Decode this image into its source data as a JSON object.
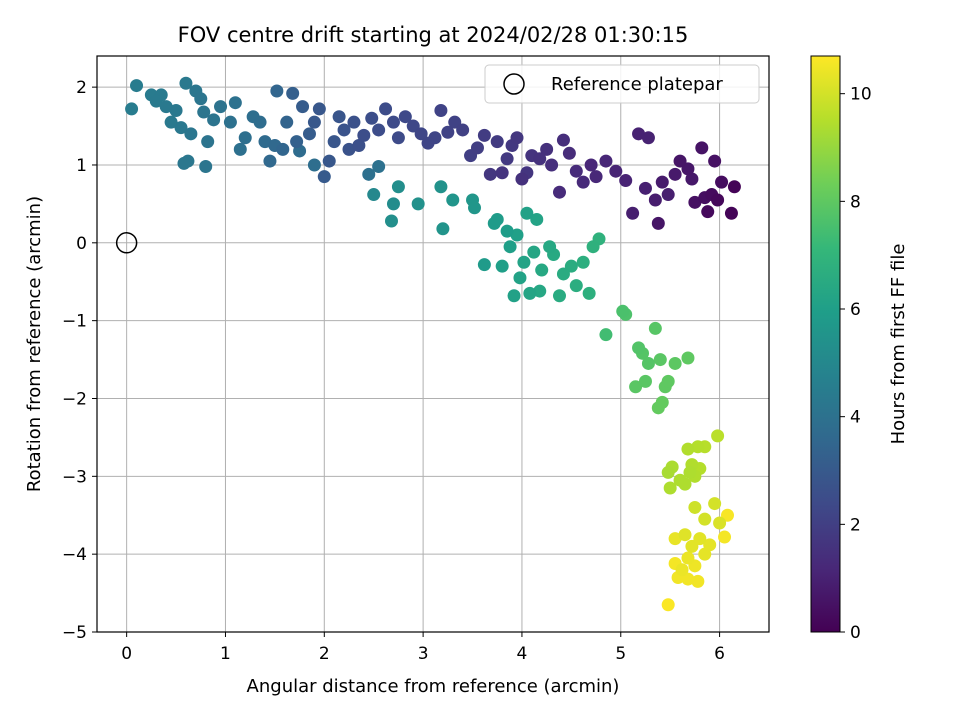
{
  "chart_data": {
    "type": "scatter",
    "title": "FOV centre drift starting at 2024/02/28 01:30:15",
    "xlabel": "Angular distance from reference (arcmin)",
    "ylabel": "Rotation from reference (arcmin)",
    "xlim": [
      -0.3,
      6.5
    ],
    "ylim": [
      -5.0,
      2.4
    ],
    "xticks": [
      0,
      1,
      2,
      3,
      4,
      5,
      6
    ],
    "yticks": [
      -5,
      -4,
      -3,
      -2,
      -1,
      0,
      1,
      2
    ],
    "xtick_labels": [
      "0",
      "1",
      "2",
      "3",
      "4",
      "5",
      "6"
    ],
    "ytick_labels": [
      "−5",
      "−4",
      "−3",
      "−2",
      "−1",
      "0",
      "1",
      "2"
    ],
    "grid": true,
    "legend": {
      "position": "top-right",
      "entries": [
        "Reference platepar"
      ]
    },
    "reference_point": {
      "x": 0,
      "y": 0
    },
    "colorbar": {
      "label": "Hours from first FF file",
      "colormap": "viridis",
      "range": [
        0,
        10.7
      ],
      "ticks": [
        0,
        2,
        4,
        6,
        8,
        10
      ],
      "tick_labels": [
        "0",
        "2",
        "4",
        "6",
        "8",
        "10"
      ]
    },
    "color_stops": [
      "#440154",
      "#482878",
      "#3e4a89",
      "#31688e",
      "#26828e",
      "#1f9e89",
      "#35b779",
      "#6ece58",
      "#b5de2b",
      "#fde725"
    ],
    "series": [
      {
        "points": [
          [
            6.15,
            0.72,
            0.05
          ],
          [
            6.12,
            0.38,
            0.1
          ],
          [
            5.98,
            0.55,
            0.2
          ],
          [
            5.92,
            0.62,
            0.3
          ],
          [
            5.88,
            0.4,
            0.25
          ],
          [
            6.02,
            0.78,
            0.35
          ],
          [
            5.85,
            0.58,
            0.4
          ],
          [
            5.75,
            0.52,
            0.45
          ],
          [
            5.95,
            1.05,
            0.5
          ],
          [
            5.82,
            1.22,
            0.55
          ],
          [
            5.6,
            1.05,
            0.6
          ],
          [
            5.68,
            0.95,
            0.65
          ],
          [
            5.72,
            0.82,
            0.7
          ],
          [
            5.55,
            0.88,
            0.75
          ],
          [
            5.42,
            0.78,
            0.8
          ],
          [
            5.38,
            0.25,
            0.6
          ],
          [
            5.35,
            0.55,
            0.85
          ],
          [
            5.48,
            0.62,
            0.9
          ],
          [
            5.25,
            0.7,
            0.95
          ],
          [
            5.18,
            1.4,
            1.0
          ],
          [
            5.28,
            1.35,
            1.0
          ],
          [
            5.12,
            0.38,
            0.9
          ],
          [
            5.05,
            0.8,
            1.05
          ],
          [
            4.95,
            0.92,
            1.1
          ],
          [
            4.85,
            1.05,
            1.15
          ],
          [
            4.75,
            0.85,
            1.2
          ],
          [
            4.7,
            1.0,
            1.15
          ],
          [
            4.62,
            0.78,
            1.25
          ],
          [
            4.55,
            0.92,
            1.3
          ],
          [
            4.48,
            1.15,
            1.35
          ],
          [
            4.42,
            1.32,
            1.4
          ],
          [
            4.38,
            0.65,
            1.3
          ],
          [
            4.3,
            1.0,
            1.45
          ],
          [
            4.25,
            1.2,
            1.5
          ],
          [
            4.18,
            1.08,
            1.55
          ],
          [
            4.1,
            1.12,
            1.6
          ],
          [
            4.05,
            0.9,
            1.65
          ],
          [
            4.0,
            0.82,
            1.5
          ],
          [
            3.95,
            1.35,
            1.7
          ],
          [
            3.9,
            1.25,
            1.75
          ],
          [
            3.85,
            1.08,
            1.8
          ],
          [
            3.8,
            0.9,
            1.6
          ],
          [
            3.75,
            1.3,
            1.85
          ],
          [
            3.68,
            0.88,
            1.7
          ],
          [
            3.62,
            1.38,
            1.9
          ],
          [
            3.55,
            1.22,
            1.95
          ],
          [
            3.48,
            1.12,
            2.0
          ],
          [
            3.4,
            1.45,
            2.05
          ],
          [
            3.32,
            1.55,
            2.1
          ],
          [
            3.25,
            1.42,
            2.1
          ],
          [
            3.18,
            1.7,
            2.15
          ],
          [
            3.12,
            1.35,
            2.2
          ],
          [
            3.05,
            1.28,
            2.2
          ],
          [
            2.98,
            1.4,
            2.25
          ],
          [
            2.9,
            1.5,
            2.3
          ],
          [
            2.82,
            1.62,
            2.35
          ],
          [
            2.75,
            1.35,
            2.4
          ],
          [
            2.7,
            1.55,
            2.4
          ],
          [
            2.62,
            1.72,
            2.45
          ],
          [
            2.55,
            1.45,
            2.5
          ],
          [
            2.48,
            1.6,
            2.55
          ],
          [
            2.4,
            1.38,
            2.55
          ],
          [
            2.35,
            1.25,
            2.6
          ],
          [
            2.3,
            1.55,
            2.65
          ],
          [
            2.25,
            1.2,
            2.7
          ],
          [
            2.2,
            1.45,
            2.75
          ],
          [
            2.15,
            1.62,
            2.8
          ],
          [
            2.1,
            1.3,
            2.85
          ],
          [
            2.05,
            1.05,
            2.9
          ],
          [
            2.0,
            0.85,
            3.0
          ],
          [
            1.95,
            1.72,
            2.9
          ],
          [
            1.9,
            1.55,
            2.95
          ],
          [
            1.85,
            1.4,
            3.1
          ],
          [
            1.78,
            1.75,
            3.1
          ],
          [
            1.72,
            1.3,
            3.3
          ],
          [
            1.68,
            1.92,
            3.2
          ],
          [
            1.62,
            1.55,
            3.4
          ],
          [
            1.58,
            1.2,
            3.5
          ],
          [
            1.52,
            1.95,
            3.5
          ],
          [
            1.45,
            1.05,
            3.6
          ],
          [
            1.4,
            1.3,
            3.7
          ],
          [
            1.35,
            1.55,
            3.8
          ],
          [
            1.28,
            1.62,
            3.85
          ],
          [
            1.2,
            1.35,
            3.9
          ],
          [
            1.15,
            1.2,
            3.95
          ],
          [
            1.1,
            1.8,
            4.0
          ],
          [
            1.05,
            1.55,
            4.0
          ],
          [
            0.95,
            1.75,
            4.05
          ],
          [
            0.88,
            1.58,
            4.1
          ],
          [
            0.82,
            1.3,
            4.1
          ],
          [
            0.8,
            0.98,
            4.15
          ],
          [
            0.75,
            1.85,
            4.15
          ],
          [
            0.7,
            1.95,
            4.2
          ],
          [
            0.65,
            1.4,
            4.2
          ],
          [
            0.62,
            1.05,
            4.25
          ],
          [
            0.58,
            1.02,
            4.25
          ],
          [
            0.55,
            1.48,
            4.3
          ],
          [
            0.5,
            1.7,
            4.3
          ],
          [
            0.45,
            1.55,
            4.35
          ],
          [
            0.4,
            1.75,
            4.35
          ],
          [
            0.35,
            1.9,
            4.4
          ],
          [
            0.3,
            1.82,
            4.4
          ],
          [
            0.25,
            1.9,
            4.45
          ],
          [
            0.1,
            2.02,
            4.5
          ],
          [
            0.05,
            1.72,
            4.5
          ],
          [
            0.6,
            2.05,
            4.35
          ],
          [
            0.78,
            1.68,
            4.15
          ],
          [
            1.5,
            1.25,
            3.6
          ],
          [
            1.75,
            1.18,
            3.75
          ],
          [
            1.9,
            1.0,
            3.85
          ],
          [
            2.45,
            0.88,
            3.95
          ],
          [
            2.55,
            0.98,
            4.0
          ],
          [
            2.5,
            0.62,
            5.0
          ],
          [
            2.7,
            0.5,
            5.2
          ],
          [
            2.75,
            0.72,
            5.25
          ],
          [
            2.68,
            0.28,
            5.3
          ],
          [
            2.95,
            0.5,
            5.4
          ],
          [
            3.18,
            0.72,
            5.45
          ],
          [
            3.2,
            0.18,
            5.5
          ],
          [
            3.3,
            0.55,
            5.55
          ],
          [
            3.5,
            0.55,
            5.6
          ],
          [
            3.52,
            0.45,
            5.6
          ],
          [
            3.62,
            -0.28,
            5.8
          ],
          [
            3.72,
            0.25,
            5.8
          ],
          [
            3.75,
            0.3,
            5.85
          ],
          [
            3.8,
            -0.3,
            6.0
          ],
          [
            3.85,
            0.15,
            5.9
          ],
          [
            3.88,
            -0.05,
            6.0
          ],
          [
            3.92,
            -0.68,
            6.1
          ],
          [
            3.95,
            0.1,
            6.05
          ],
          [
            3.98,
            -0.45,
            6.15
          ],
          [
            4.02,
            -0.25,
            6.2
          ],
          [
            4.05,
            0.38,
            6.1
          ],
          [
            4.08,
            -0.65,
            6.25
          ],
          [
            4.12,
            -0.12,
            6.3
          ],
          [
            4.15,
            0.3,
            6.2
          ],
          [
            4.18,
            -0.62,
            6.35
          ],
          [
            4.2,
            -0.35,
            6.4
          ],
          [
            4.28,
            -0.05,
            6.4
          ],
          [
            4.32,
            -0.15,
            6.45
          ],
          [
            4.38,
            -0.68,
            6.55
          ],
          [
            4.42,
            -0.4,
            6.55
          ],
          [
            4.5,
            -0.3,
            6.6
          ],
          [
            4.55,
            -0.55,
            6.65
          ],
          [
            4.62,
            -0.25,
            6.7
          ],
          [
            4.68,
            -0.65,
            6.75
          ],
          [
            4.72,
            -0.05,
            6.8
          ],
          [
            4.78,
            0.05,
            6.85
          ],
          [
            4.85,
            -1.18,
            7.4
          ],
          [
            5.02,
            -0.88,
            7.6
          ],
          [
            5.05,
            -0.92,
            7.65
          ],
          [
            5.18,
            -1.35,
            7.75
          ],
          [
            5.22,
            -1.42,
            7.8
          ],
          [
            5.28,
            -1.55,
            7.8
          ],
          [
            5.15,
            -1.85,
            7.9
          ],
          [
            5.25,
            -1.78,
            7.9
          ],
          [
            5.35,
            -1.1,
            7.85
          ],
          [
            5.4,
            -1.5,
            7.9
          ],
          [
            5.45,
            -1.85,
            8.0
          ],
          [
            5.48,
            -1.78,
            8.0
          ],
          [
            5.38,
            -2.12,
            8.1
          ],
          [
            5.42,
            -2.05,
            8.1
          ],
          [
            5.55,
            -1.55,
            7.95
          ],
          [
            5.68,
            -1.48,
            8.0
          ],
          [
            5.48,
            -2.95,
            9.3
          ],
          [
            5.52,
            -2.88,
            9.35
          ],
          [
            5.5,
            -3.15,
            9.4
          ],
          [
            5.6,
            -3.05,
            9.4
          ],
          [
            5.65,
            -3.1,
            9.4
          ],
          [
            5.7,
            -2.95,
            9.4
          ],
          [
            5.72,
            -2.85,
            9.45
          ],
          [
            5.75,
            -3.0,
            9.45
          ],
          [
            5.68,
            -2.65,
            9.45
          ],
          [
            5.78,
            -2.62,
            9.5
          ],
          [
            5.85,
            -2.62,
            9.55
          ],
          [
            5.98,
            -2.48,
            9.6
          ],
          [
            5.8,
            -2.9,
            9.5
          ],
          [
            5.75,
            -3.4,
            9.9
          ],
          [
            5.85,
            -3.55,
            10.0
          ],
          [
            5.95,
            -3.35,
            10.0
          ],
          [
            6.0,
            -3.6,
            10.1
          ],
          [
            5.65,
            -3.75,
            10.2
          ],
          [
            5.72,
            -3.9,
            10.25
          ],
          [
            5.8,
            -3.8,
            10.25
          ],
          [
            5.85,
            -4.0,
            10.3
          ],
          [
            5.9,
            -3.88,
            10.3
          ],
          [
            5.55,
            -3.8,
            10.35
          ],
          [
            5.68,
            -4.05,
            10.4
          ],
          [
            5.62,
            -4.2,
            10.4
          ],
          [
            5.75,
            -4.15,
            10.45
          ],
          [
            5.58,
            -4.3,
            10.5
          ],
          [
            5.68,
            -4.32,
            10.5
          ],
          [
            5.78,
            -4.35,
            10.5
          ],
          [
            5.55,
            -4.12,
            10.55
          ],
          [
            6.05,
            -3.78,
            10.55
          ],
          [
            6.08,
            -3.5,
            10.6
          ],
          [
            5.48,
            -4.65,
            10.65
          ]
        ]
      }
    ]
  }
}
